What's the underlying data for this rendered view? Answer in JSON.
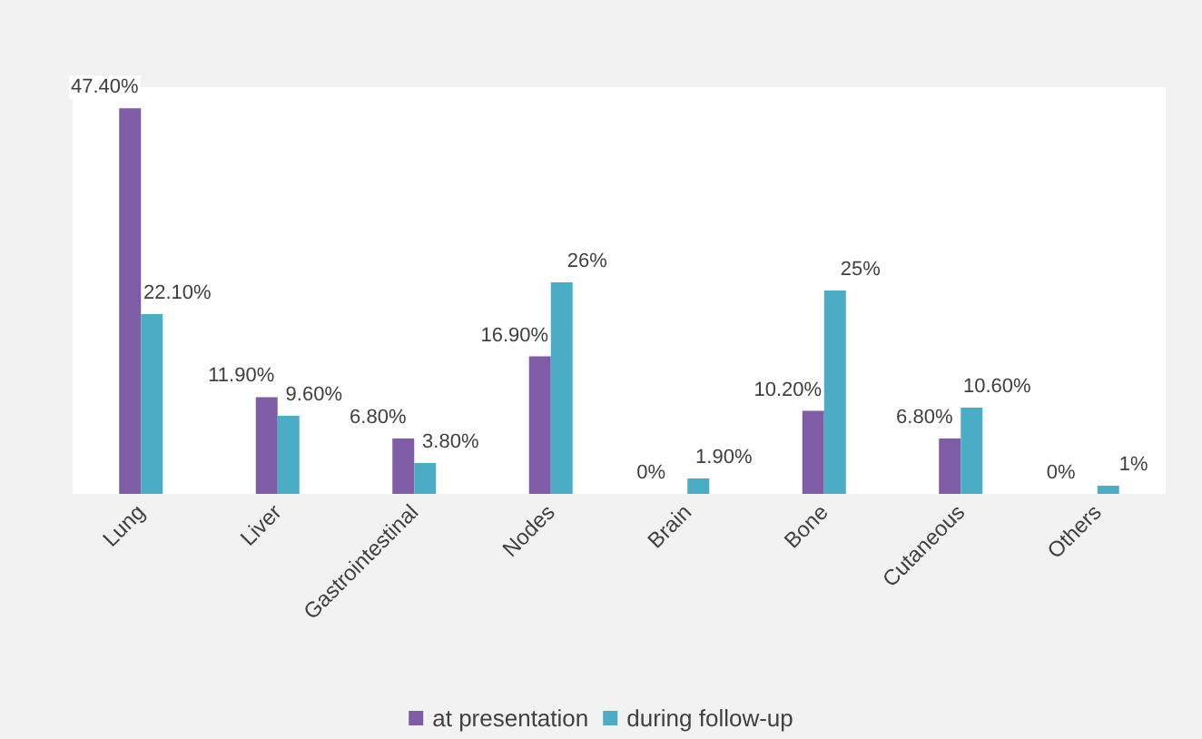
{
  "chart_data": {
    "type": "bar",
    "categories": [
      "Lung",
      "Liver",
      "Gastrointestinal",
      "Nodes",
      "Brain",
      "Bone",
      "Cutaneous",
      "Others"
    ],
    "series": [
      {
        "name": "at presentation",
        "color": "#7e5ca6",
        "values": [
          47.4,
          11.9,
          6.8,
          16.9,
          0,
          10.2,
          6.8,
          0
        ],
        "value_labels": [
          "47.40%",
          "11.90%",
          "6.80%",
          "16.90%",
          "0%",
          "10.20%",
          "6.80%",
          "0%"
        ]
      },
      {
        "name": "during follow-up",
        "color": "#4bacc6",
        "values": [
          22.1,
          9.6,
          3.8,
          26,
          1.9,
          25,
          10.6,
          1
        ],
        "value_labels": [
          "22.10%",
          "9.60%",
          "3.80%",
          "26%",
          "1.90%",
          "25%",
          "10.60%",
          "1%"
        ]
      }
    ],
    "legend": "bottom"
  }
}
